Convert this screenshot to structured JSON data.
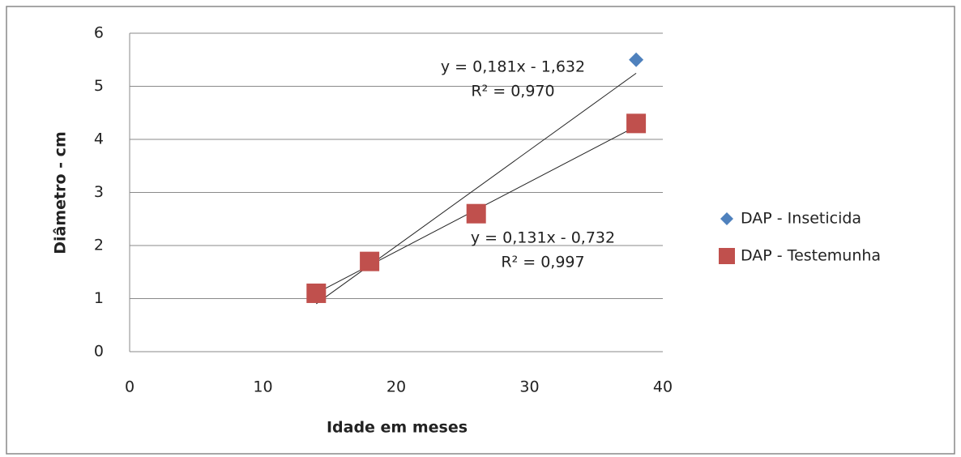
{
  "chart_data": {
    "type": "scatter",
    "x_label": "Idade em meses",
    "y_label": "Diâmetro - cm",
    "xlim": [
      0,
      40
    ],
    "xticks": [
      0,
      10,
      20,
      30,
      40
    ],
    "ylim": [
      0,
      6
    ],
    "yticks": [
      0,
      1,
      2,
      3,
      4,
      5,
      6
    ],
    "grid": true,
    "legend": "right",
    "x": [
      14,
      18,
      26,
      38
    ],
    "series": [
      {
        "name": "DAP - Inseticida",
        "color": "#4f81bd",
        "marker": "diamond",
        "values": [
          1.1,
          1.7,
          2.6,
          5.5
        ],
        "trendline": {
          "slope": 0.181,
          "intercept": -1.632,
          "equation_label": "y = 0,181x - 1,632",
          "r2_label": "R² = 0,970"
        }
      },
      {
        "name": "DAP - Testemunha",
        "color": "#c0504d",
        "marker": "square",
        "values": [
          1.1,
          1.7,
          2.6,
          4.3
        ],
        "trendline": {
          "slope": 0.131,
          "intercept": -0.732,
          "equation_label": "y = 0,131x - 0,732",
          "r2_label": "R² = 0,997"
        }
      }
    ]
  }
}
